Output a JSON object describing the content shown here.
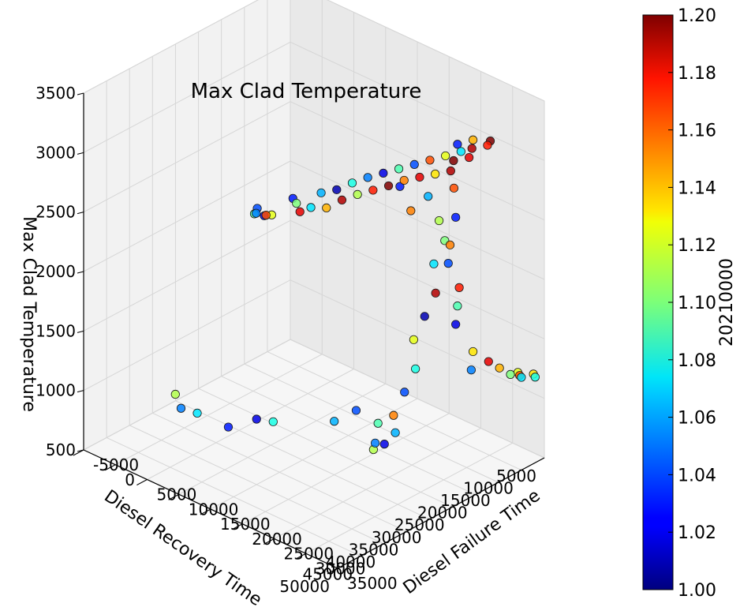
{
  "chart_data": {
    "type": "scatter",
    "projection": "3d",
    "title": "Max Clad Temperature",
    "xlabel": "Diesel Failure Time",
    "ylabel": "Diesel Recovery Time",
    "zlabel": "Max Clad Temperature",
    "xlim": [
      -5000,
      35000
    ],
    "ylim": [
      5000,
      50000
    ],
    "zlim": [
      500,
      3500
    ],
    "xticks": [
      "-5000",
      "0",
      "5000",
      "10000",
      "15000",
      "20000",
      "25000",
      "30000",
      "35000"
    ],
    "yticks": [
      "5000",
      "10000",
      "15000",
      "20000",
      "25000",
      "30000",
      "35000",
      "40000",
      "45000",
      "50000"
    ],
    "zticks": [
      "500",
      "1000",
      "1500",
      "2000",
      "2500",
      "3000",
      "3500"
    ],
    "grid": true,
    "colorbar": {
      "label": "20210000",
      "colormap": "jet",
      "min": 1.0,
      "max": 1.2,
      "ticks": [
        "1.00",
        "1.02",
        "1.04",
        "1.06",
        "1.08",
        "1.10",
        "1.12",
        "1.14",
        "1.16",
        "1.18",
        "1.20"
      ]
    },
    "points": [
      [
        20000,
        47000,
        3050,
        1.05
      ],
      [
        22000,
        48000,
        3100,
        1.02
      ],
      [
        19000,
        46000,
        3000,
        1.09
      ],
      [
        23000,
        49000,
        3150,
        1.16
      ],
      [
        21000,
        45000,
        3020,
        1.12
      ],
      [
        18000,
        44000,
        2980,
        1.04
      ],
      [
        24000,
        43000,
        3080,
        1.18
      ],
      [
        25000,
        42000,
        3120,
        1.07
      ],
      [
        22000,
        41000,
        3060,
        1.1
      ],
      [
        26000,
        40000,
        3100,
        1.14
      ],
      [
        20000,
        39000,
        3010,
        1.03
      ],
      [
        27000,
        38000,
        3150,
        1.19
      ],
      [
        23000,
        37000,
        3090,
        1.06
      ],
      [
        28000,
        36000,
        3180,
        1.11
      ],
      [
        24000,
        35000,
        3100,
        1.01
      ],
      [
        29000,
        34000,
        3200,
        1.17
      ],
      [
        25000,
        33000,
        3140,
        1.08
      ],
      [
        30000,
        32000,
        3220,
        1.2
      ],
      [
        26000,
        31000,
        3170,
        1.05
      ],
      [
        31000,
        30000,
        3250,
        1.15
      ],
      [
        27000,
        29000,
        3190,
        1.02
      ],
      [
        32000,
        28000,
        3260,
        1.18
      ],
      [
        28000,
        27000,
        3210,
        1.09
      ],
      [
        33000,
        26000,
        3270,
        1.13
      ],
      [
        29000,
        25000,
        3230,
        1.04
      ],
      [
        34000,
        24000,
        3280,
        1.19
      ],
      [
        30000,
        23000,
        3250,
        1.16
      ],
      [
        33000,
        22000,
        3300,
        1.2
      ],
      [
        31000,
        21000,
        3270,
        1.12
      ],
      [
        34000,
        20000,
        3310,
        1.18
      ],
      [
        32000,
        19000,
        3290,
        1.07
      ],
      [
        33000,
        18000,
        3320,
        1.19
      ],
      [
        30000,
        17000,
        3260,
        1.03
      ],
      [
        34000,
        16000,
        3330,
        1.17
      ],
      [
        31000,
        15000,
        3280,
        1.14
      ],
      [
        33000,
        14000,
        3300,
        1.2
      ],
      [
        29000,
        22000,
        2900,
        1.06
      ],
      [
        30000,
        21000,
        2700,
        1.11
      ],
      [
        31000,
        20000,
        2500,
        1.15
      ],
      [
        30000,
        19000,
        2300,
        1.04
      ],
      [
        31000,
        18000,
        2100,
        1.17
      ],
      [
        30000,
        17000,
        1900,
        1.09
      ],
      [
        29000,
        16000,
        1700,
        1.02
      ],
      [
        31000,
        15000,
        1500,
        1.13
      ],
      [
        30000,
        14000,
        1300,
        1.05
      ],
      [
        28000,
        15000,
        2800,
        1.16
      ],
      [
        29000,
        16000,
        2600,
        1.03
      ],
      [
        28000,
        17000,
        2400,
        1.1
      ],
      [
        27000,
        18000,
        2200,
        1.07
      ],
      [
        28000,
        19000,
        2000,
        1.19
      ],
      [
        27000,
        20000,
        1800,
        1.01
      ],
      [
        26000,
        21000,
        1600,
        1.12
      ],
      [
        27000,
        22000,
        1400,
        1.08
      ],
      [
        26000,
        23000,
        1200,
        1.04
      ],
      [
        25000,
        24000,
        1000,
        1.15
      ],
      [
        26000,
        25000,
        900,
        1.06
      ],
      [
        25000,
        26000,
        800,
        1.02
      ],
      [
        24000,
        27000,
        750,
        1.11
      ],
      [
        25000,
        28000,
        850,
        1.05
      ],
      [
        24000,
        26000,
        950,
        1.09
      ],
      [
        32000,
        13000,
        1400,
        1.18
      ],
      [
        33000,
        12000,
        1350,
        1.14
      ],
      [
        34000,
        11000,
        1300,
        1.1
      ],
      [
        35000,
        10000,
        1280,
        1.07
      ],
      [
        34000,
        9000,
        1250,
        1.16
      ],
      [
        33000,
        8000,
        1230,
        1.12
      ],
      [
        35000,
        7000,
        1220,
        1.08
      ],
      [
        34000,
        6000,
        1200,
        1.13
      ],
      [
        8000,
        48000,
        1250,
        1.11
      ],
      [
        10000,
        46000,
        1100,
        1.07
      ],
      [
        6000,
        44000,
        1000,
        1.05
      ],
      [
        12000,
        42000,
        950,
        1.03
      ],
      [
        15000,
        40000,
        1050,
        1.02
      ],
      [
        14000,
        35000,
        900,
        1.08
      ],
      [
        20000,
        30000,
        950,
        1.06
      ],
      [
        22000,
        28000,
        1050,
        1.04
      ],
      [
        26000,
        24000,
        2950,
        1.03
      ],
      [
        27000,
        23000,
        2750,
        1.15
      ]
    ]
  }
}
